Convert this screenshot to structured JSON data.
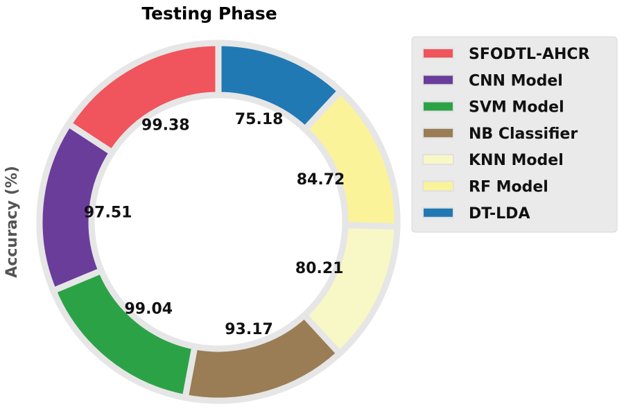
{
  "chart_data": {
    "type": "pie",
    "donut": true,
    "title": "Testing Phase",
    "ylabel": "Accuracy (%)",
    "categories": [
      "SFODTL-AHCR",
      "CNN Model",
      "SVM Model",
      "NB Classifier",
      "KNN Model",
      "RF Model",
      "DT-LDA"
    ],
    "values": [
      99.38,
      97.51,
      99.04,
      93.17,
      80.21,
      84.72,
      75.18
    ],
    "colors": [
      "#f0545c",
      "#6a3d9a",
      "#2ca247",
      "#9a7d55",
      "#f8f8c6",
      "#faf39a",
      "#2179b4"
    ],
    "start_angle_deg": 90,
    "direction": "counterclockwise",
    "legend": {
      "position": "right",
      "labels": [
        "SFODTL-AHCR",
        "CNN Model",
        "SVM Model",
        "NB Classifier",
        "KNN Model",
        "RF Model",
        "DT-LDA"
      ]
    },
    "grid": false
  }
}
